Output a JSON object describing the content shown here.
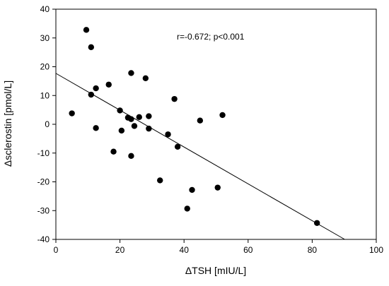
{
  "chart_data": {
    "type": "scatter",
    "title": "",
    "xlabel": "ΔTSH [mIU/L]",
    "ylabel": "Δsclerostin [pmol/L]",
    "annotation": "r=-0.672; p<0.001",
    "xlim": [
      0,
      100
    ],
    "ylim": [
      -40,
      40
    ],
    "x_ticks": [
      0,
      20,
      40,
      60,
      80,
      100
    ],
    "y_ticks": [
      -40,
      -30,
      -20,
      -10,
      0,
      10,
      20,
      30,
      40
    ],
    "grid": false,
    "legend": "none",
    "colors": {
      "points": "#000000",
      "line": "#000000",
      "axes": "#000000"
    },
    "points": [
      {
        "x": 5.0,
        "y": 3.8
      },
      {
        "x": 9.5,
        "y": 32.8
      },
      {
        "x": 11.0,
        "y": 26.8
      },
      {
        "x": 11.0,
        "y": 10.3
      },
      {
        "x": 12.5,
        "y": 12.5
      },
      {
        "x": 12.5,
        "y": -1.3
      },
      {
        "x": 16.5,
        "y": 13.8
      },
      {
        "x": 18.0,
        "y": -9.5
      },
      {
        "x": 20.0,
        "y": 4.8
      },
      {
        "x": 20.5,
        "y": -2.2
      },
      {
        "x": 22.5,
        "y": 2.3
      },
      {
        "x": 23.5,
        "y": 17.8
      },
      {
        "x": 23.5,
        "y": 1.8
      },
      {
        "x": 23.5,
        "y": -11.0
      },
      {
        "x": 24.5,
        "y": -0.6
      },
      {
        "x": 26.0,
        "y": 2.5
      },
      {
        "x": 28.0,
        "y": 16.0
      },
      {
        "x": 29.0,
        "y": 2.8
      },
      {
        "x": 29.0,
        "y": -1.5
      },
      {
        "x": 32.5,
        "y": -19.5
      },
      {
        "x": 35.0,
        "y": -3.5
      },
      {
        "x": 37.0,
        "y": 8.8
      },
      {
        "x": 38.0,
        "y": -7.8
      },
      {
        "x": 41.0,
        "y": -29.3
      },
      {
        "x": 42.5,
        "y": -22.8
      },
      {
        "x": 45.0,
        "y": 1.3
      },
      {
        "x": 50.5,
        "y": -22.0
      },
      {
        "x": 52.0,
        "y": 3.2
      },
      {
        "x": 81.5,
        "y": -34.3
      }
    ],
    "regression": {
      "intercept": 17.7,
      "slope": -0.64
    }
  }
}
